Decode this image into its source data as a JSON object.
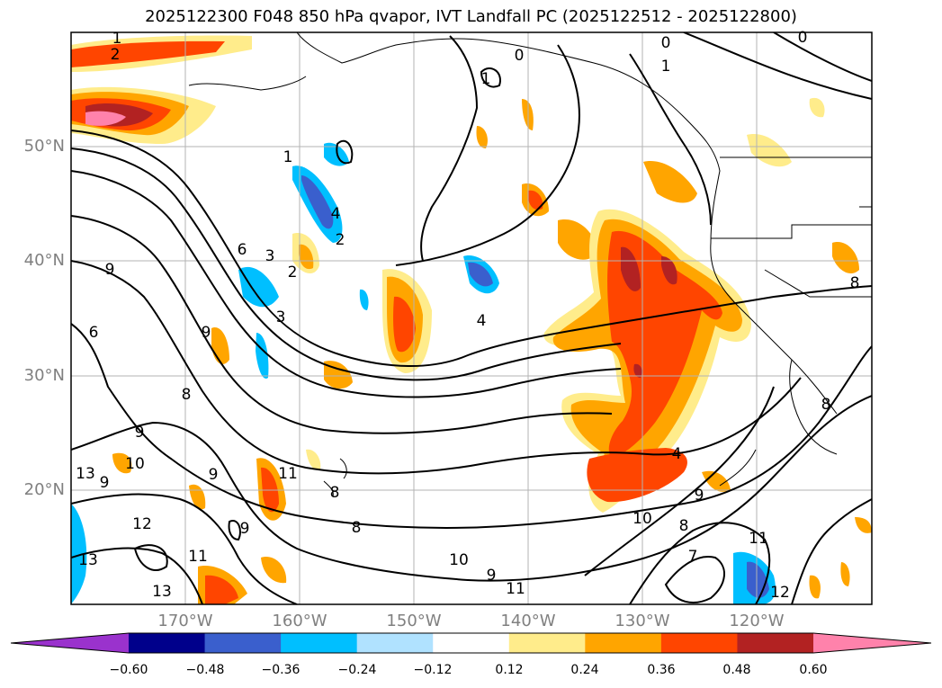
{
  "title": "2025122300 F048 850 hPa qvapor, IVT Landfall PC (2025122512 - 2025122800)",
  "lat_labels": [
    "50°N",
    "40°N",
    "30°N",
    "20°N"
  ],
  "lon_labels": [
    "170°W",
    "160°W",
    "150°W",
    "140°W",
    "130°W",
    "120°W"
  ],
  "colorbar": {
    "ticks": [
      "−0.60",
      "−0.48",
      "−0.36",
      "−0.24",
      "−0.12",
      "0.12",
      "0.24",
      "0.36",
      "0.48",
      "0.60"
    ],
    "colors": [
      "#9a32cd",
      "#00008b",
      "#3a5fcd",
      "#00bfff",
      "#b0e2ff",
      "#ffffff",
      "#ffec8b",
      "#ffa500",
      "#ff4500",
      "#b22222",
      "#ff82ab"
    ]
  },
  "contour_labels": [
    "0",
    "0",
    "0",
    "1",
    "1",
    "1",
    "1",
    "2",
    "2",
    "2",
    "3",
    "3",
    "4",
    "4",
    "4",
    "6",
    "6",
    "8",
    "8",
    "8",
    "8",
    "8",
    "8",
    "9",
    "9",
    "9",
    "9",
    "9",
    "9",
    "9",
    "9",
    "10",
    "10",
    "10",
    "11",
    "11",
    "11",
    "11",
    "12",
    "12",
    "13",
    "13",
    "13",
    "7"
  ]
}
